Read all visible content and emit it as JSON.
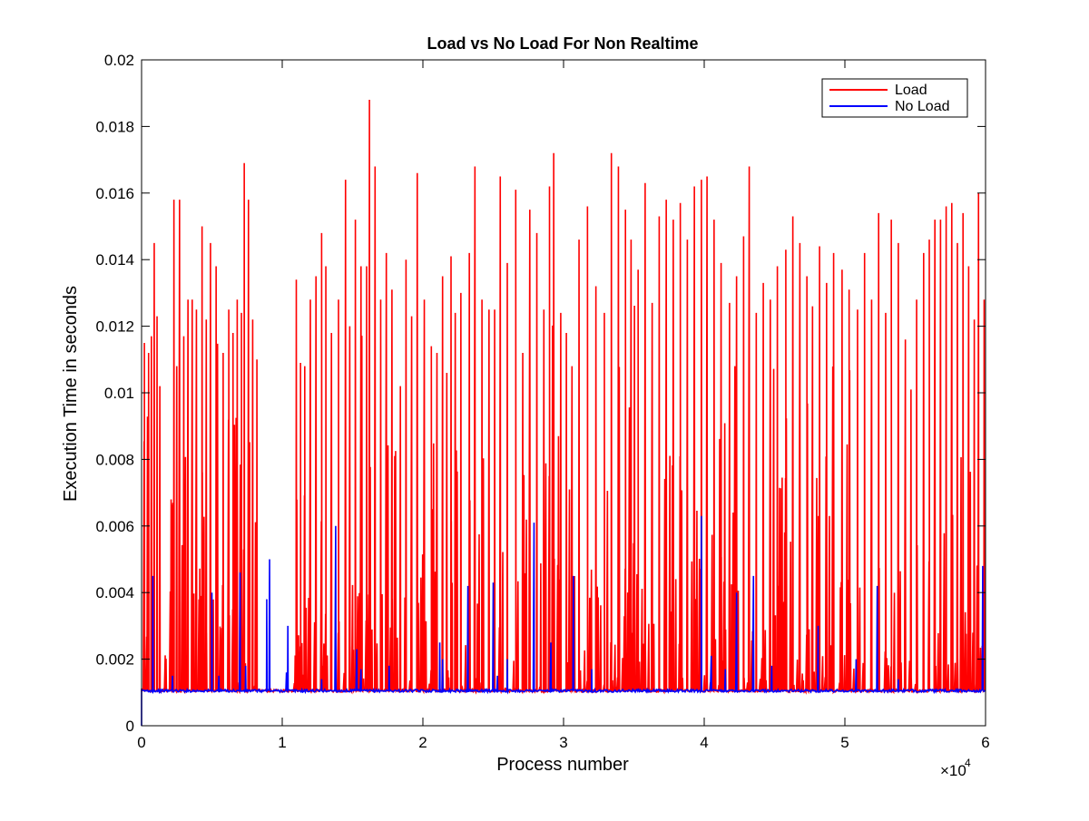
{
  "chart_data": {
    "type": "line",
    "title": "Load vs No Load For Non Realtime",
    "xlabel": "Process number",
    "ylabel": "Execution Time in seconds",
    "xlim": [
      0,
      60000
    ],
    "ylim": [
      0,
      0.02
    ],
    "x_ticks": [
      0,
      10000,
      20000,
      30000,
      40000,
      50000,
      60000
    ],
    "x_tick_labels": [
      "0",
      "1",
      "2",
      "3",
      "4",
      "5",
      "6"
    ],
    "x_exponent_base": "×10",
    "x_exponent_power": "4",
    "y_ticks": [
      0,
      0.002,
      0.004,
      0.006,
      0.008,
      0.01,
      0.012,
      0.014,
      0.016,
      0.018,
      0.02
    ],
    "y_tick_labels": [
      "0",
      "0.002",
      "0.004",
      "0.006",
      "0.008",
      "0.01",
      "0.012",
      "0.014",
      "0.016",
      "0.018",
      "0.02"
    ],
    "grid": false,
    "legend_position": "top-right",
    "series": [
      {
        "name": "Load",
        "color": "#ff0000",
        "baseline": 0.00105,
        "x_range": [
          0,
          60000
        ],
        "peaks": [
          [
            200,
            0.0115
          ],
          [
            500,
            0.0112
          ],
          [
            700,
            0.0117
          ],
          [
            900,
            0.0145
          ],
          [
            1100,
            0.0123
          ],
          [
            1300,
            0.0102
          ],
          [
            2100,
            0.0068
          ],
          [
            2300,
            0.0158
          ],
          [
            2500,
            0.0108
          ],
          [
            2700,
            0.0158
          ],
          [
            3000,
            0.0117
          ],
          [
            3300,
            0.0128
          ],
          [
            3600,
            0.0128
          ],
          [
            3900,
            0.0125
          ],
          [
            4300,
            0.015
          ],
          [
            4600,
            0.0122
          ],
          [
            4900,
            0.0145
          ],
          [
            5300,
            0.0138
          ],
          [
            5800,
            0.0112
          ],
          [
            6200,
            0.0125
          ],
          [
            6500,
            0.0118
          ],
          [
            6800,
            0.0128
          ],
          [
            7100,
            0.0124
          ],
          [
            7300,
            0.0169
          ],
          [
            7600,
            0.0158
          ],
          [
            7900,
            0.0122
          ],
          [
            8200,
            0.011
          ],
          [
            11000,
            0.0134
          ],
          [
            11300,
            0.0109
          ],
          [
            11600,
            0.0108
          ],
          [
            12000,
            0.0128
          ],
          [
            12400,
            0.0135
          ],
          [
            12800,
            0.0148
          ],
          [
            13100,
            0.0138
          ],
          [
            13500,
            0.0118
          ],
          [
            14000,
            0.0128
          ],
          [
            14500,
            0.0164
          ],
          [
            14800,
            0.012
          ],
          [
            15200,
            0.0152
          ],
          [
            15600,
            0.0138
          ],
          [
            16000,
            0.0138
          ],
          [
            16200,
            0.0188
          ],
          [
            16600,
            0.0168
          ],
          [
            17000,
            0.0128
          ],
          [
            17400,
            0.0142
          ],
          [
            17800,
            0.0131
          ],
          [
            18400,
            0.0102
          ],
          [
            18800,
            0.014
          ],
          [
            19200,
            0.0123
          ],
          [
            19600,
            0.0166
          ],
          [
            20100,
            0.0128
          ],
          [
            20600,
            0.0114
          ],
          [
            21000,
            0.0112
          ],
          [
            21400,
            0.0135
          ],
          [
            21700,
            0.0106
          ],
          [
            22000,
            0.0141
          ],
          [
            22300,
            0.0124
          ],
          [
            22700,
            0.013
          ],
          [
            23300,
            0.0142
          ],
          [
            23700,
            0.0168
          ],
          [
            24200,
            0.0128
          ],
          [
            24700,
            0.0125
          ],
          [
            25100,
            0.0125
          ],
          [
            25500,
            0.0165
          ],
          [
            26000,
            0.0139
          ],
          [
            26600,
            0.0161
          ],
          [
            27100,
            0.0112
          ],
          [
            27600,
            0.0155
          ],
          [
            28100,
            0.0148
          ],
          [
            28600,
            0.0125
          ],
          [
            29000,
            0.0162
          ],
          [
            29300,
            0.0172
          ],
          [
            29800,
            0.0124
          ],
          [
            30200,
            0.0118
          ],
          [
            30600,
            0.0108
          ],
          [
            31100,
            0.0146
          ],
          [
            31700,
            0.0156
          ],
          [
            32300,
            0.0132
          ],
          [
            32900,
            0.0124
          ],
          [
            33400,
            0.0172
          ],
          [
            33900,
            0.0168
          ],
          [
            34400,
            0.0155
          ],
          [
            34800,
            0.0146
          ],
          [
            35300,
            0.0137
          ],
          [
            35800,
            0.0163
          ],
          [
            36300,
            0.0127
          ],
          [
            36800,
            0.0153
          ],
          [
            37300,
            0.0158
          ],
          [
            37800,
            0.0152
          ],
          [
            38300,
            0.0157
          ],
          [
            38800,
            0.0146
          ],
          [
            39300,
            0.0162
          ],
          [
            39800,
            0.0164
          ],
          [
            40200,
            0.0165
          ],
          [
            40700,
            0.0152
          ],
          [
            41200,
            0.0139
          ],
          [
            41800,
            0.0127
          ],
          [
            42300,
            0.0135
          ],
          [
            42800,
            0.0147
          ],
          [
            43200,
            0.0168
          ],
          [
            43700,
            0.0124
          ],
          [
            44200,
            0.0133
          ],
          [
            44700,
            0.0128
          ],
          [
            45200,
            0.0138
          ],
          [
            45800,
            0.0143
          ],
          [
            46300,
            0.0153
          ],
          [
            46800,
            0.0145
          ],
          [
            47300,
            0.0135
          ],
          [
            47700,
            0.0126
          ],
          [
            48200,
            0.0144
          ],
          [
            48700,
            0.0133
          ],
          [
            49200,
            0.0142
          ],
          [
            49800,
            0.0137
          ],
          [
            50300,
            0.0131
          ],
          [
            50900,
            0.0125
          ],
          [
            51400,
            0.0142
          ],
          [
            51900,
            0.0128
          ],
          [
            52400,
            0.0154
          ],
          [
            52900,
            0.0124
          ],
          [
            53300,
            0.0152
          ],
          [
            53800,
            0.0145
          ],
          [
            54300,
            0.0116
          ],
          [
            54700,
            0.0101
          ],
          [
            55100,
            0.0128
          ],
          [
            55600,
            0.0142
          ],
          [
            56000,
            0.0146
          ],
          [
            56400,
            0.0152
          ],
          [
            56800,
            0.0152
          ],
          [
            57200,
            0.0156
          ],
          [
            57600,
            0.0157
          ],
          [
            58000,
            0.0145
          ],
          [
            58400,
            0.0154
          ],
          [
            58800,
            0.0138
          ],
          [
            59200,
            0.0122
          ],
          [
            59500,
            0.016
          ],
          [
            59900,
            0.0128
          ]
        ],
        "gap_ranges": [
          [
            8500,
            10800
          ]
        ]
      },
      {
        "name": "No Load",
        "color": "#0000ff",
        "baseline": 0.00105,
        "start_value": 0.0,
        "x_range": [
          0,
          60000
        ],
        "peaks": [
          [
            800,
            0.0045
          ],
          [
            2200,
            0.0015
          ],
          [
            5000,
            0.004
          ],
          [
            5500,
            0.0015
          ],
          [
            7000,
            0.0046
          ],
          [
            7400,
            0.0018
          ],
          [
            8900,
            0.0038
          ],
          [
            9100,
            0.005
          ],
          [
            10300,
            0.0016
          ],
          [
            10400,
            0.003
          ],
          [
            12800,
            0.0014
          ],
          [
            13800,
            0.006
          ],
          [
            15300,
            0.0023
          ],
          [
            15600,
            0.0017
          ],
          [
            17600,
            0.0018
          ],
          [
            21200,
            0.0025
          ],
          [
            21400,
            0.002
          ],
          [
            23200,
            0.0042
          ],
          [
            25000,
            0.0043
          ],
          [
            25300,
            0.0015
          ],
          [
            26000,
            0.002
          ],
          [
            27900,
            0.0061
          ],
          [
            29100,
            0.0025
          ],
          [
            30700,
            0.0045
          ],
          [
            32000,
            0.0017
          ],
          [
            39800,
            0.0063
          ],
          [
            40500,
            0.0021
          ],
          [
            41500,
            0.0017
          ],
          [
            42300,
            0.004
          ],
          [
            43500,
            0.0045
          ],
          [
            44800,
            0.0018
          ],
          [
            48100,
            0.003
          ],
          [
            50800,
            0.002
          ],
          [
            52300,
            0.0042
          ],
          [
            53800,
            0.0014
          ],
          [
            59800,
            0.0048
          ]
        ]
      }
    ]
  }
}
